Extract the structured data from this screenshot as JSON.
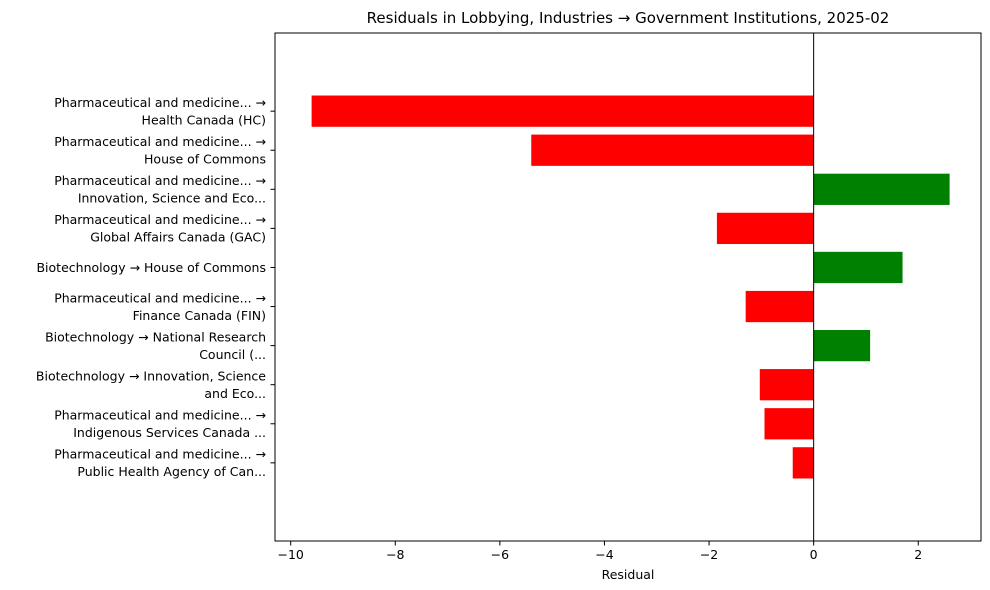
{
  "chart_data": {
    "type": "bar",
    "orientation": "horizontal",
    "title": "Residuals in Lobbying, Industries → Government Institutions, 2025-02",
    "xlabel": "Residual",
    "ylabel": "",
    "xlim": [
      -10.3,
      3.2
    ],
    "xticks": [
      -10,
      -8,
      -6,
      -4,
      -2,
      0,
      2
    ],
    "xtick_labels": [
      "−10",
      "−8",
      "−6",
      "−4",
      "−2",
      "0",
      "2"
    ],
    "grid": false,
    "categories": [
      [
        "Pharmaceutical and medicine... →",
        "Health Canada (HC)"
      ],
      [
        "Pharmaceutical and medicine... →",
        "House of Commons"
      ],
      [
        "Pharmaceutical and medicine... →",
        "Innovation, Science and Eco..."
      ],
      [
        "Pharmaceutical and medicine... →",
        "Global Affairs Canada (GAC)"
      ],
      [
        "Biotechnology → House of Commons"
      ],
      [
        "Pharmaceutical and medicine... →",
        "Finance Canada (FIN)"
      ],
      [
        "Biotechnology → National Research",
        "Council (..."
      ],
      [
        "Biotechnology → Innovation, Science",
        "and Eco..."
      ],
      [
        "Pharmaceutical and medicine... →",
        "Indigenous Services Canada ..."
      ],
      [
        "Pharmaceutical and medicine... →",
        "Public Health Agency of Can..."
      ]
    ],
    "values": [
      -9.6,
      -5.4,
      2.6,
      -1.85,
      1.7,
      -1.3,
      1.08,
      -1.03,
      -0.94,
      -0.4
    ],
    "colors": {
      "positive": "#008000",
      "negative": "#ff0000"
    }
  }
}
